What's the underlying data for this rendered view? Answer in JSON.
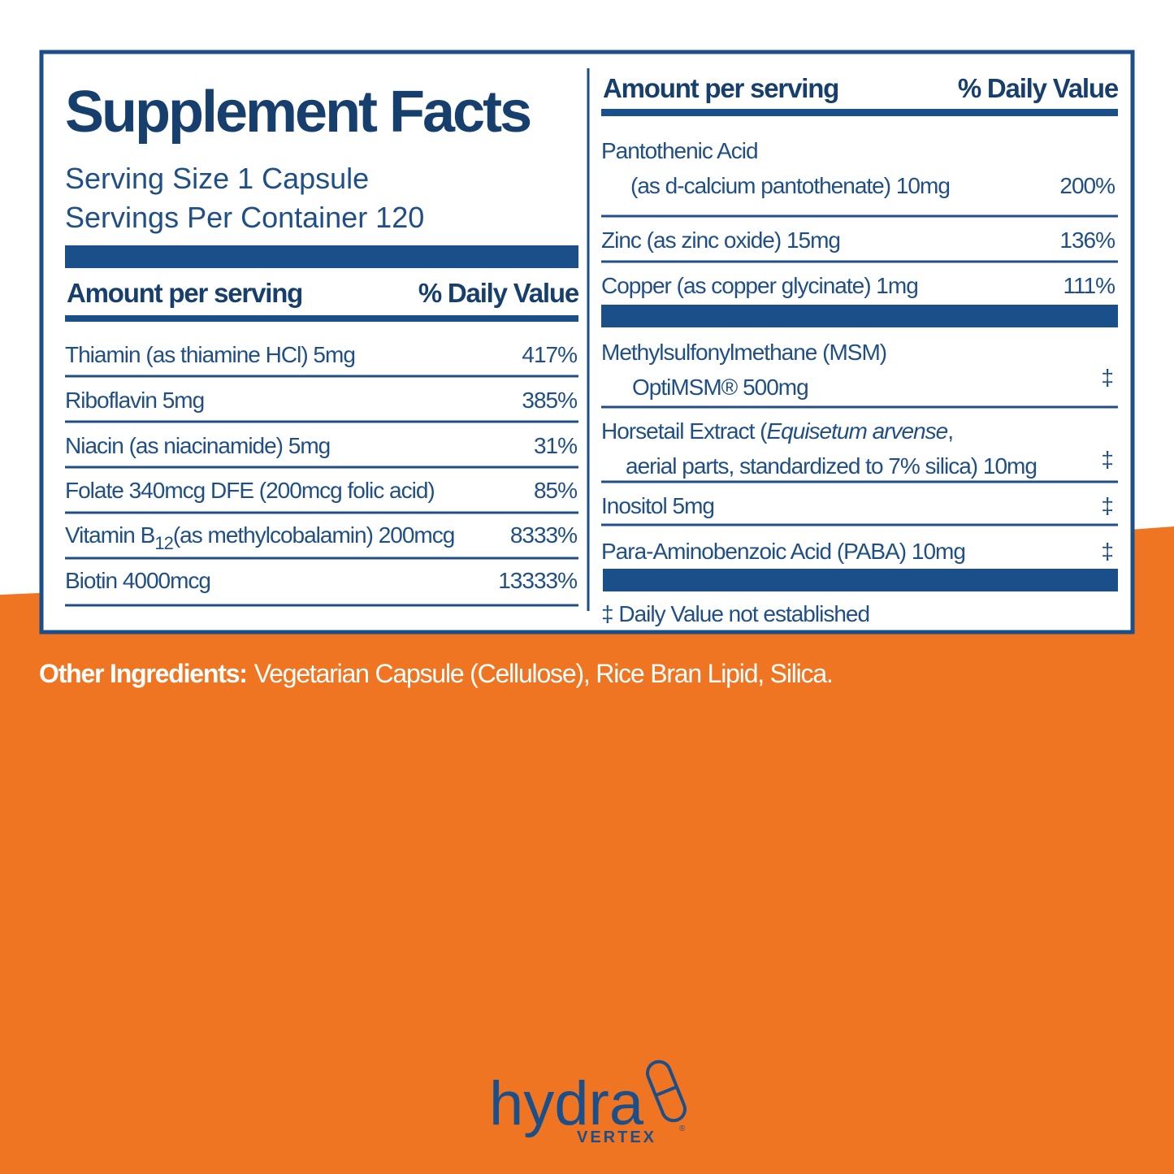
{
  "label": {
    "title": "Supplement Facts",
    "serving_size": "Serving Size 1 Capsule",
    "servings_per_container": "Servings Per Container 120",
    "left_header": {
      "amount": "Amount per serving",
      "daily_value": "% Daily Value"
    },
    "left_rows": [
      {
        "name": "Thiamin (as thiamine HCl)  5mg",
        "dv": "417%"
      },
      {
        "name": "Riboflavin 5mg",
        "dv": "385%"
      },
      {
        "name": "Niacin (as niacinamide) 5mg",
        "dv": "31%"
      },
      {
        "name": "Folate 340mcg DFE (200mcg folic acid)",
        "dv": "85%"
      },
      {
        "name_start": "Vitamin B",
        "subscript": "12",
        "name_end": "(as methylcobalamin) 200mcg",
        "dv": "8333%"
      },
      {
        "name": "Biotin 4000mcg",
        "dv": "13333%"
      }
    ],
    "right_header": {
      "amount": "Amount per serving",
      "daily_value": "% Daily Value"
    },
    "right_rows": [
      {
        "line1": "Pantothenic Acid",
        "line2": "(as d-calcium pantothenate) 10mg",
        "dv": "200%"
      },
      {
        "line1": "Zinc (as zinc oxide) 15mg",
        "dv": "136%"
      },
      {
        "line1": "Copper (as copper glycinate) 1mg",
        "dv": "111%"
      },
      {
        "line1": "Methylsulfonylmethane (MSM)",
        "line2": "OptiMSM® 500mg",
        "dv": "‡"
      },
      {
        "line1_start": "Horsetail Extract (",
        "line1_italic": "Equisetum arvense",
        "line1_end": ",",
        "line2": "aerial parts, standardized to 7% silica) 10mg",
        "dv": "‡"
      },
      {
        "line1": "Inositol 5mg",
        "dv": "‡"
      },
      {
        "line1": "Para-Aminobenzoic Acid (PABA) 10mg",
        "dv": "‡"
      }
    ],
    "footnote": "‡ Daily Value not established"
  },
  "other_ingredients": {
    "label": "Other Ingredients:",
    "text": "Vegetarian Capsule (Cellulose), Rice Bran Lipid, Silica."
  },
  "logo": {
    "word": "hydra",
    "sub": "VERTEX",
    "mark": "®"
  }
}
